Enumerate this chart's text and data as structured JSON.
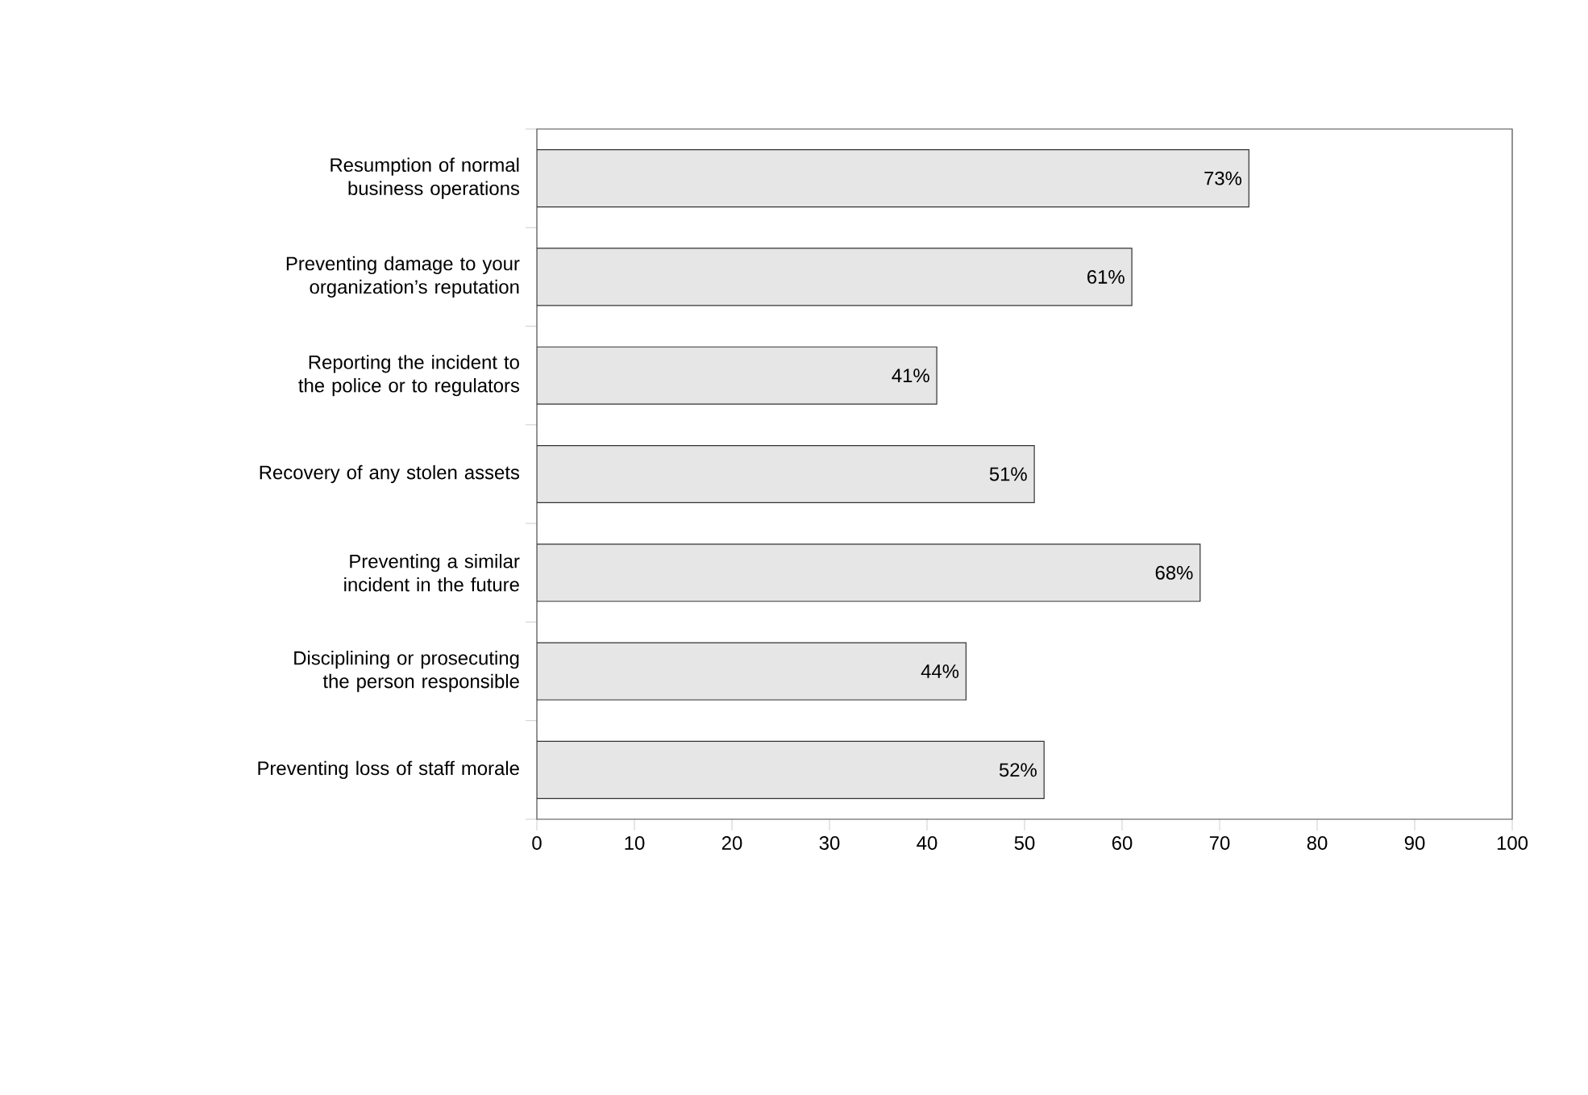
{
  "chart_data": {
    "type": "bar",
    "orientation": "horizontal",
    "categories": [
      "Resumption of normal business operations",
      "Preventing damage to your organization’s reputation",
      "Reporting the incident to the police or to regulators",
      "Recovery of any stolen assets",
      "Preventing a similar incident in the future",
      "Disciplining or prosecuting the person responsible",
      "Preventing loss of staff morale"
    ],
    "values": [
      73,
      61,
      41,
      51,
      68,
      44,
      52
    ],
    "value_labels": [
      "73%",
      "61%",
      "41%",
      "51%",
      "68%",
      "44%",
      "52%"
    ],
    "color": "#e6e6e6",
    "xlim": [
      0,
      100
    ],
    "xticks": [
      0,
      10,
      20,
      30,
      40,
      50,
      60,
      70,
      80,
      90,
      100
    ]
  }
}
